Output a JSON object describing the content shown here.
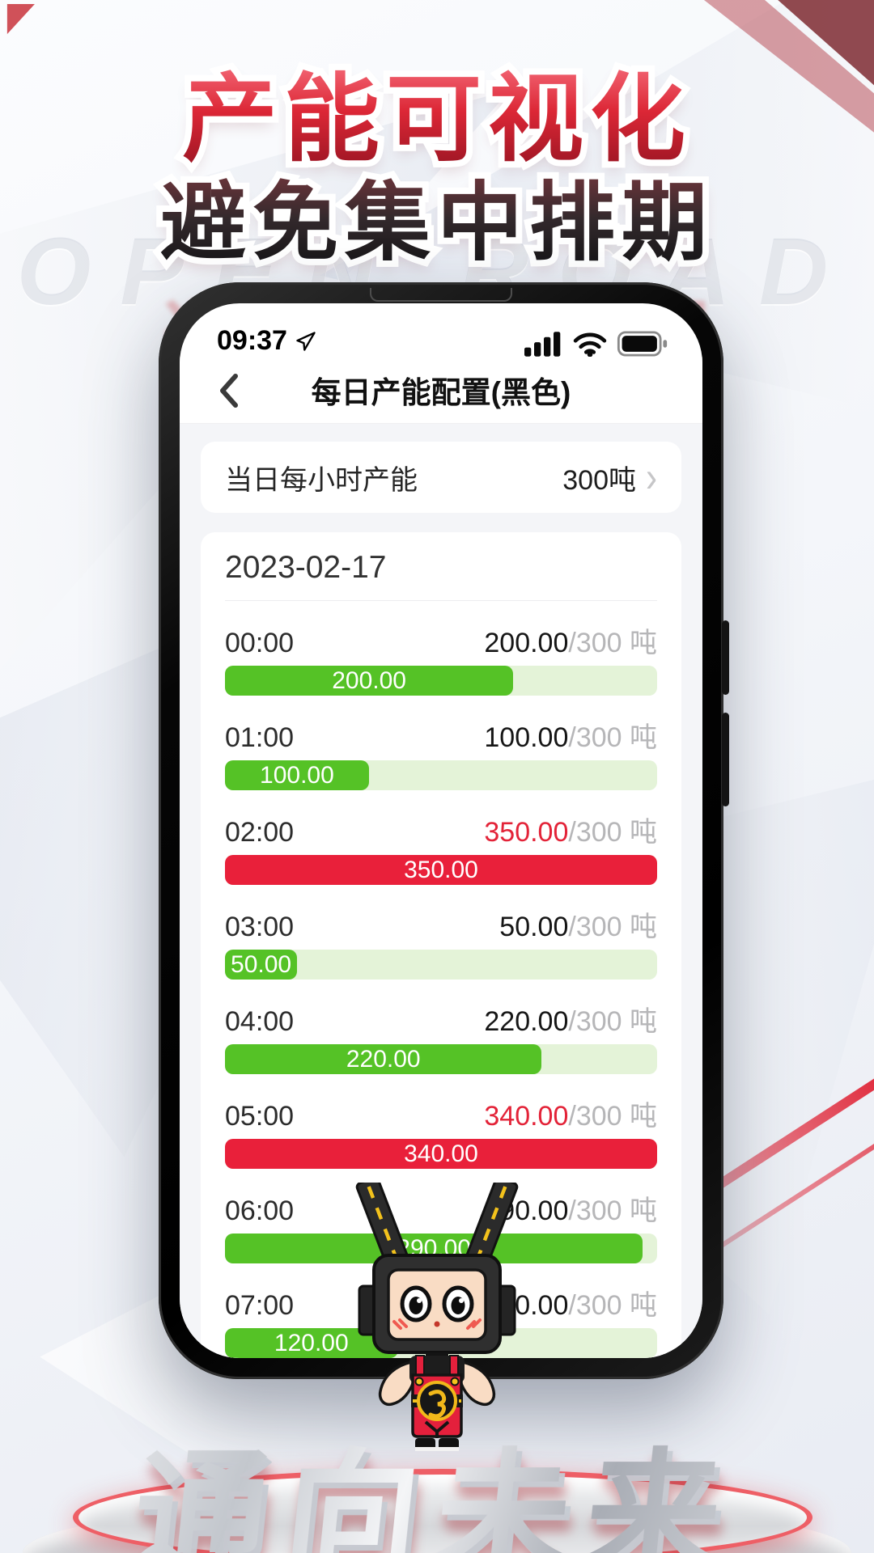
{
  "poster": {
    "headline_line1": "产能可视化",
    "headline_line2": "避免集中排期",
    "ghost_watermark": "OPEN ROAD",
    "footer_3d_text": "通向未来",
    "accent_red": "#e8203a"
  },
  "phone": {
    "status_bar": {
      "time": "09:37"
    },
    "nav": {
      "title": "每日产能配置(黑色)"
    },
    "setting_row": {
      "label": "当日每小时产能",
      "value": "300吨",
      "chevron": "›"
    },
    "capacity": {
      "date": "2023-02-17",
      "hourly_limit": 300,
      "limit_display": "/300 吨",
      "rows": [
        {
          "time": "00:00",
          "value": "200.00",
          "percent": 66.7,
          "over": false
        },
        {
          "time": "01:00",
          "value": "100.00",
          "percent": 33.3,
          "over": false
        },
        {
          "time": "02:00",
          "value": "350.00",
          "percent": 100,
          "over": true
        },
        {
          "time": "03:00",
          "value": "50.00",
          "percent": 16.7,
          "over": false
        },
        {
          "time": "04:00",
          "value": "220.00",
          "percent": 73.3,
          "over": false
        },
        {
          "time": "05:00",
          "value": "340.00",
          "percent": 100,
          "over": true
        },
        {
          "time": "06:00",
          "value": "290.00",
          "percent": 96.7,
          "over": false
        },
        {
          "time": "07:00",
          "value": "120.00",
          "percent": 40,
          "over": false
        }
      ]
    },
    "colors": {
      "bar_green": "#55c226",
      "bar_track_green": "#e4f3d8",
      "bar_red": "#e9203a",
      "over_value_red": "#e32338"
    }
  }
}
